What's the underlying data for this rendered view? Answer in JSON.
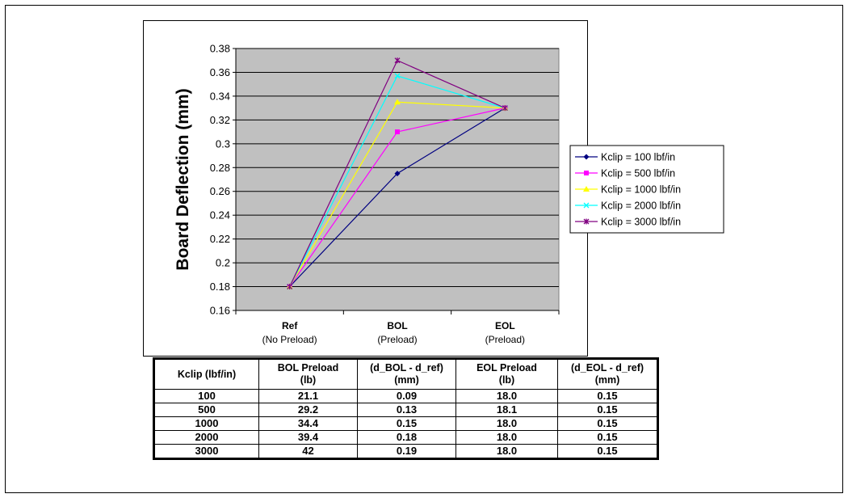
{
  "chart_data": {
    "type": "line",
    "ylabel": "Board Deflection (mm)",
    "xlabel": "",
    "ylim": [
      0.16,
      0.38
    ],
    "yticks": [
      "0.16",
      "0.18",
      "0.2",
      "0.22",
      "0.24",
      "0.26",
      "0.28",
      "0.3",
      "0.32",
      "0.34",
      "0.36",
      "0.38"
    ],
    "categories": [
      {
        "line1": "Ref",
        "line2": "(No Preload)"
      },
      {
        "line1": "BOL",
        "line2": "(Preload)"
      },
      {
        "line1": "EOL",
        "line2": "(Preload)"
      }
    ],
    "plot_background": "#c0c0c0",
    "grid": true,
    "legend_position": "right",
    "series": [
      {
        "name": "Kclip = 100 lbf/in",
        "values": [
          0.18,
          0.275,
          0.33
        ],
        "color": "#000080",
        "marker": "diamond"
      },
      {
        "name": "Kclip = 500 lbf/in",
        "values": [
          0.18,
          0.31,
          0.33
        ],
        "color": "#ff00ff",
        "marker": "square"
      },
      {
        "name": "Kclip = 1000 lbf/in",
        "values": [
          0.18,
          0.335,
          0.33
        ],
        "color": "#ffff00",
        "marker": "triangle"
      },
      {
        "name": "Kclip = 2000 lbf/in",
        "values": [
          0.18,
          0.357,
          0.33
        ],
        "color": "#00ffff",
        "marker": "x"
      },
      {
        "name": "Kclip = 3000 lbf/in",
        "values": [
          0.18,
          0.37,
          0.33
        ],
        "color": "#800080",
        "marker": "star"
      }
    ]
  },
  "table": {
    "headers": [
      "Kclip (lbf/in)",
      "BOL Preload\n(lb)",
      "(d_BOL - d_ref)\n(mm)",
      "EOL Preload\n(lb)",
      "(d_EOL - d_ref)\n(mm)"
    ],
    "rows": [
      [
        "100",
        "21.1",
        "0.09",
        "18.0",
        "0.15"
      ],
      [
        "500",
        "29.2",
        "0.13",
        "18.1",
        "0.15"
      ],
      [
        "1000",
        "34.4",
        "0.15",
        "18.0",
        "0.15"
      ],
      [
        "2000",
        "39.4",
        "0.18",
        "18.0",
        "0.15"
      ],
      [
        "3000",
        "42",
        "0.19",
        "18.0",
        "0.15"
      ]
    ]
  }
}
